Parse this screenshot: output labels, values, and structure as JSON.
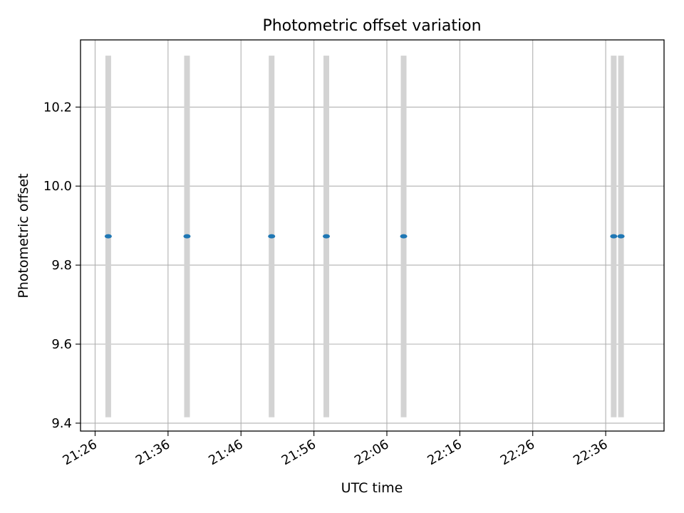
{
  "chart_data": {
    "type": "scatter",
    "title": "Photometric offset variation",
    "xlabel": "UTC time",
    "ylabel": "Photometric offset",
    "x_tick_labels": [
      "21:26",
      "21:36",
      "21:46",
      "21:56",
      "22:06",
      "22:16",
      "22:26",
      "22:36"
    ],
    "x_tick_minutes": [
      0,
      10,
      20,
      30,
      40,
      50,
      60,
      70
    ],
    "y_ticks": [
      9.4,
      9.6,
      9.8,
      10.0,
      10.2
    ],
    "y_tick_labels": [
      "9.4",
      "9.6",
      "9.8",
      "10.0",
      "10.2"
    ],
    "xlim_minutes": [
      -2,
      78
    ],
    "ylim": [
      9.38,
      10.37
    ],
    "grid": true,
    "series": [
      {
        "color": "#1f77b4",
        "marker": "point",
        "x": [
          "21:27:48",
          "21:38:36",
          "21:50:12",
          "21:57:42",
          "22:08:18",
          "22:37:06",
          "22:38:06"
        ],
        "x_minutes": [
          1.8,
          12.6,
          24.2,
          31.7,
          42.3,
          71.1,
          72.1
        ],
        "y": [
          9.873,
          9.873,
          9.873,
          9.873,
          9.873,
          9.873,
          9.873
        ],
        "error_low": [
          9.415,
          9.415,
          9.415,
          9.415,
          9.415,
          9.415,
          9.415
        ],
        "error_high": [
          10.33,
          10.33,
          10.33,
          10.33,
          10.33,
          10.33,
          10.33
        ],
        "error_color": "#d3d3d3"
      }
    ]
  }
}
